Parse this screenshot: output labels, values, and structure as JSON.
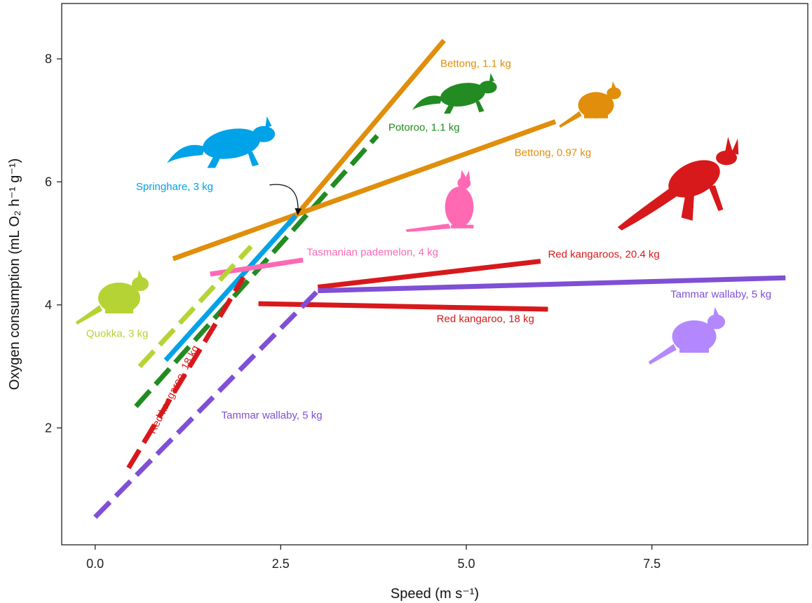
{
  "chart_data": {
    "type": "line",
    "xlabel": "Speed (m s⁻¹)",
    "ylabel": "Oxygen consumption (mL O₂ h⁻¹ g⁻¹)",
    "xlim": [
      -0.45,
      9.6
    ],
    "ylim": [
      0.1,
      8.9
    ],
    "xticks": [
      0.0,
      2.5,
      5.0,
      7.5
    ],
    "xtick_labels": [
      "0.0",
      "2.5",
      "5.0",
      "7.5"
    ],
    "yticks": [
      2,
      4,
      6,
      8
    ],
    "ytick_labels": [
      "2",
      "4",
      "6",
      "8"
    ],
    "grid": false,
    "legend": "none",
    "series": [
      {
        "name": "Bettong, 1.1 kg",
        "color": "#E08E0B",
        "style": "solid",
        "x": [
          2.6,
          4.7
        ],
        "y": [
          5.3,
          8.3
        ]
      },
      {
        "name": "Potoroo, 1.1 kg",
        "color": "#228B22",
        "style": "dashed",
        "x": [
          0.55,
          3.8
        ],
        "y": [
          2.35,
          6.75
        ]
      },
      {
        "name": "Bettong, 0.97 kg",
        "color": "#E08E0B",
        "style": "solid",
        "x": [
          1.05,
          6.2
        ],
        "y": [
          4.75,
          6.98
        ]
      },
      {
        "name": "Springhare, 3 kg",
        "color": "#00A2E8",
        "style": "solid",
        "x": [
          0.95,
          2.7
        ],
        "y": [
          3.1,
          5.45
        ]
      },
      {
        "name": "Tasmanian pademelon, 4 kg",
        "color": "#FF69B4",
        "style": "solid",
        "x": [
          1.55,
          2.8
        ],
        "y": [
          4.5,
          4.73
        ]
      },
      {
        "name": "Red kangaroos, 20.4 kg",
        "color": "#D7191C",
        "style": "solid",
        "x": [
          3.0,
          6.0
        ],
        "y": [
          4.29,
          4.71
        ]
      },
      {
        "name": "Tammar wallaby, 5 kg",
        "color": "#7F4FD6",
        "style": "solid",
        "x": [
          3.0,
          9.3
        ],
        "y": [
          4.23,
          4.44
        ]
      },
      {
        "name": "Red kangaroo, 18 kg",
        "color": "#D7191C",
        "style": "solid",
        "x": [
          2.2,
          6.1
        ],
        "y": [
          4.02,
          3.93
        ]
      },
      {
        "name": "Quokka, 3 kg",
        "color": "#B5D334",
        "style": "dashed",
        "x": [
          0.6,
          2.1
        ],
        "y": [
          3.0,
          4.95
        ]
      },
      {
        "name": "Red kangaroo, 18 kg",
        "color": "#D7191C",
        "style": "dashed",
        "x": [
          0.45,
          2.0
        ],
        "y": [
          1.35,
          4.45
        ]
      },
      {
        "name": "Tammar wallaby, 5 kg",
        "color": "#7F4FD6",
        "style": "dashed",
        "x": [
          0.0,
          3.0
        ],
        "y": [
          0.55,
          4.23
        ]
      }
    ],
    "annotations": [
      {
        "text": "Bettong, 1.1 kg",
        "color": "#E08E0B",
        "x": 4.65,
        "y": 7.87,
        "anchor": "start",
        "rotate": 0
      },
      {
        "text": "Potoroo, 1.1 kg",
        "color": "#228B22",
        "x": 3.95,
        "y": 6.83,
        "anchor": "start",
        "rotate": 0
      },
      {
        "text": "Bettong, 0.97 kg",
        "color": "#E08E0B",
        "x": 5.65,
        "y": 6.42,
        "anchor": "start",
        "rotate": 0
      },
      {
        "text": "Springhare, 3 kg",
        "color": "#00A2E8",
        "x": 0.55,
        "y": 5.87,
        "anchor": "start",
        "rotate": 0
      },
      {
        "text": "Tasmanian pademelon, 4 kg",
        "color": "#FF69B4",
        "x": 2.85,
        "y": 4.8,
        "anchor": "start",
        "rotate": 0
      },
      {
        "text": "Red kangaroos, 20.4 kg",
        "color": "#D7191C",
        "x": 6.1,
        "y": 4.77,
        "anchor": "start",
        "rotate": 0
      },
      {
        "text": "Tammar wallaby, 5 kg",
        "color": "#7F4FD6",
        "x": 7.75,
        "y": 4.12,
        "anchor": "start",
        "rotate": 0
      },
      {
        "text": "Red kangaroo, 18 kg",
        "color": "#D7191C",
        "x": 4.6,
        "y": 3.72,
        "anchor": "start",
        "rotate": 0
      },
      {
        "text": "Quokka, 3 kg",
        "color": "#B5D334",
        "x": -0.12,
        "y": 3.48,
        "anchor": "start",
        "rotate": 0
      },
      {
        "text": "Red kangaroo, 18 kg",
        "color": "#D7191C",
        "x": 1.1,
        "y": 2.6,
        "anchor": "middle",
        "rotate": -63
      },
      {
        "text": "Tammar wallaby, 5 kg",
        "color": "#7F4FD6",
        "x": 1.7,
        "y": 2.15,
        "anchor": "start",
        "rotate": 0
      }
    ],
    "arrow": {
      "from": [
        2.35,
        5.95
      ],
      "to": [
        2.73,
        5.48
      ]
    }
  },
  "silhouettes": [
    {
      "name": "springhare-silhouette",
      "color": "#00A2E8"
    },
    {
      "name": "potoroo-silhouette",
      "color": "#228B22"
    },
    {
      "name": "bettong-silhouette",
      "color": "#E08E0B"
    },
    {
      "name": "red-kangaroo-silhouette",
      "color": "#D7191C"
    },
    {
      "name": "pademelon-silhouette",
      "color": "#FF69B4"
    },
    {
      "name": "quokka-silhouette",
      "color": "#B5D334"
    },
    {
      "name": "tammar-wallaby-silhouette",
      "color": "#B388FF"
    }
  ]
}
